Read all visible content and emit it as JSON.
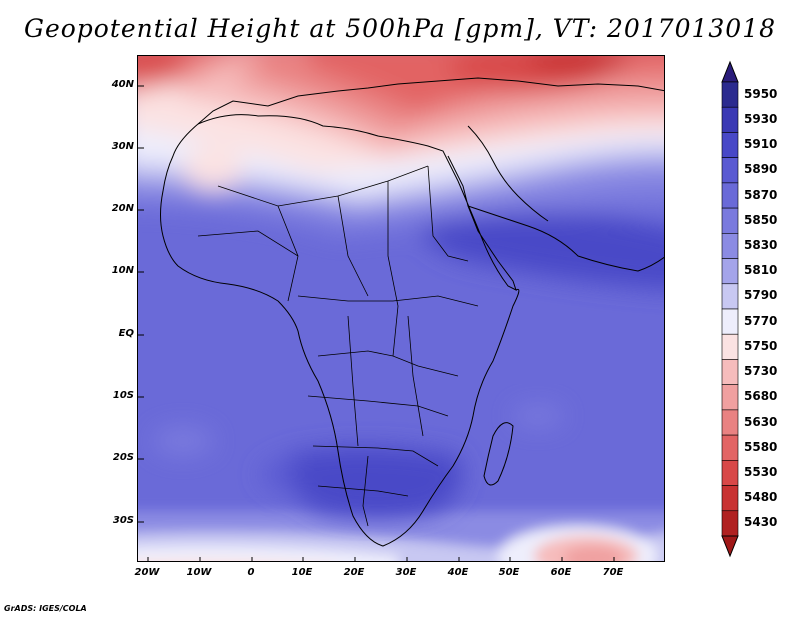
{
  "title": "Geopotential Height at 500hPa [gpm], VT: 2017013018",
  "credit": "GrADS: IGES/COLA",
  "lat_labels": [
    "40N",
    "30N",
    "20N",
    "10N",
    "EQ",
    "10S",
    "20S",
    "30S"
  ],
  "lat_values": [
    40,
    30,
    20,
    10,
    0,
    -10,
    -20,
    -30
  ],
  "lon_labels": [
    "20W",
    "10W",
    "0",
    "10E",
    "20E",
    "30E",
    "40E",
    "50E",
    "60E",
    "70E"
  ],
  "lon_values": [
    -20,
    -10,
    0,
    10,
    20,
    30,
    40,
    50,
    60,
    70
  ],
  "map_extent": {
    "lon_min": -22,
    "lon_max": 80,
    "lat_min": -36,
    "lat_max": 45
  },
  "colorbar": {
    "levels": [
      "5950",
      "5930",
      "5910",
      "5890",
      "5870",
      "5850",
      "5830",
      "5810",
      "5790",
      "5770",
      "5750",
      "5730",
      "5680",
      "5630",
      "5580",
      "5530",
      "5480",
      "5430"
    ],
    "colors": [
      "#2b2b8f",
      "#3a39b4",
      "#4848c7",
      "#5a5ad2",
      "#6a6ad8",
      "#7a7ade",
      "#8b8be3",
      "#a4a4ea",
      "#c8c8f2",
      "#eeeefc",
      "#fbe2e2",
      "#f6bcbc",
      "#f0a0a0",
      "#e98282",
      "#e26464",
      "#d84848",
      "#c83232",
      "#b02020"
    ],
    "top_arrow_color": "#2a1c7a",
    "bottom_arrow_color": "#a01818"
  }
}
